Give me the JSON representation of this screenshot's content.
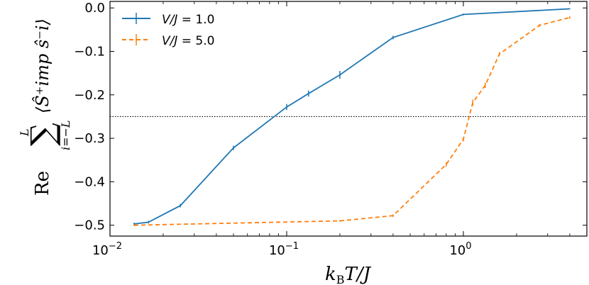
{
  "chart_data": {
    "type": "line",
    "x_scale": "log",
    "xlim": [
      0.01,
      5.0
    ],
    "ylim": [
      -0.525,
      0.015
    ],
    "x_ticks": [
      {
        "value": 0.01,
        "label": "10",
        "exp": "−2"
      },
      {
        "value": 0.1,
        "label": "10",
        "exp": "−1"
      },
      {
        "value": 1.0,
        "label": "10",
        "exp": "0"
      }
    ],
    "y_ticks": [
      {
        "value": 0.0,
        "label": "0.0"
      },
      {
        "value": -0.1,
        "label": "−0.1"
      },
      {
        "value": -0.2,
        "label": "−0.2"
      },
      {
        "value": -0.3,
        "label": "−0.3"
      },
      {
        "value": -0.4,
        "label": "−0.4"
      },
      {
        "value": -0.5,
        "label": "−0.5"
      }
    ],
    "xlabel": "k_B T / J",
    "ylabel": "Re Σ_{i=−L}^{L} ⟨Ŝ⁺_imp ŝ⁻_i⟩",
    "reference_line": {
      "y": -0.25,
      "style": "dotted",
      "color": "#000000"
    },
    "legend_position": "top-left",
    "series": [
      {
        "name": "V/J = 1.0",
        "color": "#1f77b4",
        "dash": "solid",
        "x": [
          0.0137,
          0.0165,
          0.025,
          0.05,
          0.1,
          0.133,
          0.2,
          0.4,
          1.0,
          4.0
        ],
        "y": [
          -0.497,
          -0.493,
          -0.455,
          -0.322,
          -0.228,
          -0.197,
          -0.154,
          -0.068,
          -0.015,
          -0.002
        ],
        "yerr": [
          0.003,
          0.003,
          0.004,
          0.005,
          0.007,
          0.007,
          0.009,
          0.004,
          0.002,
          0.001
        ]
      },
      {
        "name": "V/J = 5.0",
        "color": "#ff7f0e",
        "dash": "dashed",
        "x": [
          0.0137,
          0.2,
          0.4,
          0.8,
          1.0,
          1.13,
          1.33,
          1.6,
          2.7,
          4.0
        ],
        "y": [
          -0.5,
          -0.49,
          -0.478,
          -0.36,
          -0.302,
          -0.218,
          -0.178,
          -0.106,
          -0.04,
          -0.022
        ],
        "yerr": [
          0.002,
          0.002,
          0.003,
          0.005,
          0.005,
          0.007,
          0.006,
          0.004,
          0.003,
          0.003
        ]
      }
    ]
  },
  "legend": {
    "v1_label_prefix": "V/J",
    "v1_label_value": " = 1.0",
    "v5_label_prefix": "V/J",
    "v5_label_value": " = 5.0"
  },
  "axes_text": {
    "x_k": "k",
    "x_sub": "B",
    "x_rest": "T/J",
    "y_re": "Re",
    "y_sum_top": "L",
    "y_sum_bottom": "i=−L",
    "y_bracket": "⟨Ŝ⁺imp ŝ⁻i⟩"
  }
}
